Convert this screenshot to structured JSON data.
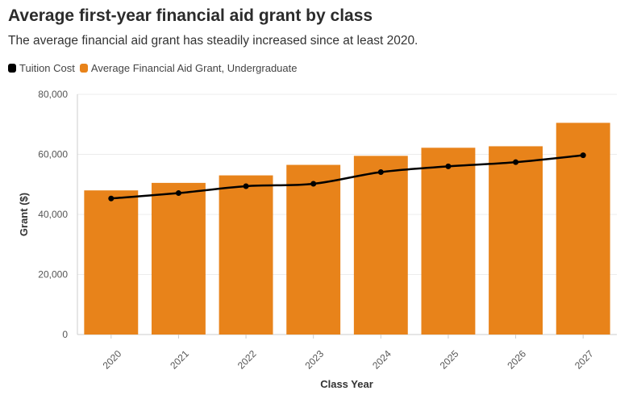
{
  "chart_data": {
    "type": "bar",
    "title": "Average first-year financial aid grant by class",
    "subtitle": "The average financial aid grant has steadily increased since at least 2020.",
    "xlabel": "Class Year",
    "ylabel": "Grant ($)",
    "categories": [
      "2020",
      "2021",
      "2022",
      "2023",
      "2024",
      "2025",
      "2026",
      "2027"
    ],
    "ylim": [
      0,
      80000
    ],
    "yticks": [
      0,
      20000,
      40000,
      60000,
      80000
    ],
    "ytick_labels": [
      "0",
      "20,000",
      "40,000",
      "60,000",
      "80,000"
    ],
    "grid": true,
    "legend_position": "top-left",
    "series": [
      {
        "name": "Tuition Cost",
        "kind": "line",
        "color": "#000000",
        "values": [
          45300,
          47100,
          49400,
          50200,
          54100,
          56000,
          57400,
          59700
        ]
      },
      {
        "name": "Average Financial Aid Grant, Undergraduate",
        "kind": "bar",
        "color": "#E8831A",
        "values": [
          48000,
          50500,
          53000,
          56500,
          59500,
          62200,
          62700,
          70500
        ]
      }
    ]
  }
}
